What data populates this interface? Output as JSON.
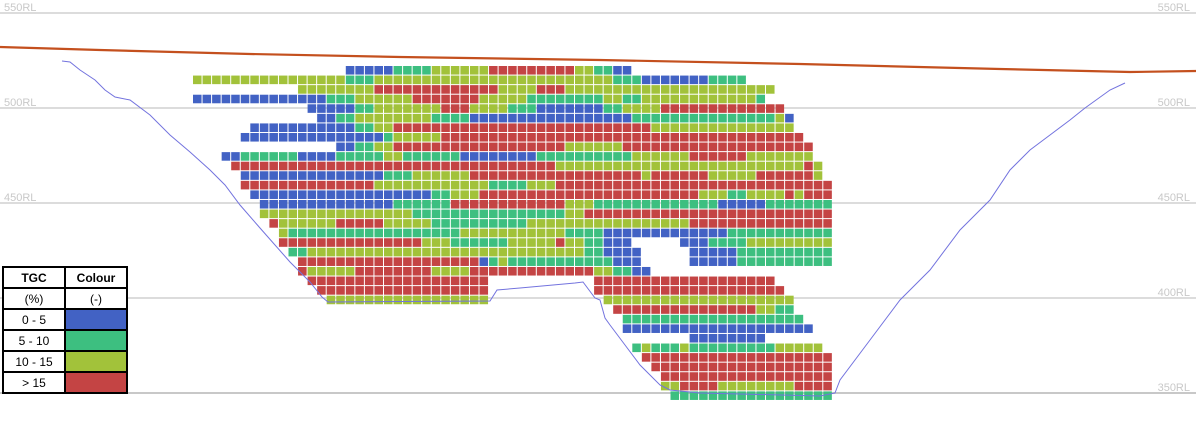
{
  "elevation_labels": [
    "550RL",
    "500RL",
    "450RL",
    "400RL",
    "350RL"
  ],
  "elevations": [
    550,
    500,
    450,
    400,
    350
  ],
  "legend": {
    "header": [
      "TGC",
      "Colour"
    ],
    "units": [
      "(%)",
      "(-)"
    ],
    "classes": [
      {
        "label": "0 - 5",
        "color": "#4262c4"
      },
      {
        "label": "5 - 10",
        "color": "#3dbf80"
      },
      {
        "label": "10 - 15",
        "color": "#a2c23a"
      },
      {
        "label": "> 15",
        "color": "#c44444"
      }
    ]
  },
  "colors": {
    "topography": "#c4501e",
    "pit_outline": "#7373de",
    "grid": "#c8c8c8"
  },
  "block_model": {
    "columns": 67,
    "rows": [
      [
        [
          16,
          21,
          0
        ],
        [
          21,
          25,
          1
        ],
        [
          25,
          31,
          2
        ],
        [
          31,
          40,
          3
        ],
        [
          40,
          42,
          2
        ],
        [
          42,
          44,
          1
        ],
        [
          44,
          46,
          0
        ]
      ],
      [
        [
          0,
          16,
          2
        ],
        [
          16,
          19,
          1
        ],
        [
          19,
          44,
          2
        ],
        [
          44,
          47,
          1
        ],
        [
          47,
          54,
          0
        ],
        [
          54,
          58,
          1
        ]
      ],
      [
        [
          11,
          19,
          2
        ],
        [
          19,
          32,
          3
        ],
        [
          32,
          36,
          2
        ],
        [
          36,
          39,
          3
        ],
        [
          39,
          61,
          2
        ]
      ],
      [
        [
          0,
          14,
          0
        ],
        [
          14,
          17,
          1
        ],
        [
          17,
          23,
          2
        ],
        [
          23,
          30,
          3
        ],
        [
          30,
          35,
          2
        ],
        [
          35,
          43,
          1
        ],
        [
          43,
          45,
          2
        ],
        [
          45,
          47,
          1
        ],
        [
          47,
          59,
          2
        ],
        [
          59,
          60,
          1
        ]
      ],
      [
        [
          12,
          17,
          0
        ],
        [
          17,
          19,
          1
        ],
        [
          19,
          26,
          2
        ],
        [
          26,
          29,
          3
        ],
        [
          29,
          33,
          2
        ],
        [
          33,
          36,
          1
        ],
        [
          36,
          43,
          0
        ],
        [
          43,
          45,
          1
        ],
        [
          45,
          49,
          2
        ],
        [
          49,
          62,
          3
        ]
      ],
      [
        [
          13,
          15,
          0
        ],
        [
          15,
          17,
          1
        ],
        [
          17,
          25,
          2
        ],
        [
          25,
          29,
          1
        ],
        [
          29,
          46,
          0
        ],
        [
          46,
          61,
          1
        ],
        [
          61,
          62,
          2
        ],
        [
          62,
          63,
          0
        ]
      ],
      [
        [
          6,
          17,
          0
        ],
        [
          17,
          19,
          1
        ],
        [
          19,
          21,
          2
        ],
        [
          21,
          48,
          3
        ],
        [
          48,
          63,
          2
        ]
      ],
      [
        [
          5,
          20,
          0
        ],
        [
          20,
          21,
          1
        ],
        [
          21,
          26,
          2
        ],
        [
          26,
          64,
          3
        ]
      ],
      [
        [
          15,
          17,
          0
        ],
        [
          17,
          19,
          1
        ],
        [
          19,
          21,
          2
        ],
        [
          21,
          39,
          3
        ],
        [
          39,
          45,
          2
        ],
        [
          45,
          65,
          3
        ]
      ],
      [
        [
          3,
          5,
          0
        ],
        [
          5,
          11,
          1
        ],
        [
          11,
          15,
          0
        ],
        [
          15,
          20,
          1
        ],
        [
          20,
          22,
          2
        ],
        [
          22,
          28,
          1
        ],
        [
          28,
          36,
          0
        ],
        [
          36,
          46,
          1
        ],
        [
          46,
          52,
          2
        ],
        [
          52,
          58,
          3
        ],
        [
          58,
          65,
          2
        ]
      ],
      [
        [
          4,
          38,
          3
        ],
        [
          38,
          64,
          2
        ],
        [
          64,
          65,
          3
        ],
        [
          65,
          66,
          2
        ]
      ],
      [
        [
          5,
          20,
          0
        ],
        [
          20,
          23,
          1
        ],
        [
          23,
          29,
          2
        ],
        [
          29,
          47,
          3
        ],
        [
          47,
          48,
          2
        ],
        [
          48,
          54,
          3
        ],
        [
          54,
          59,
          2
        ],
        [
          59,
          65,
          3
        ],
        [
          65,
          66,
          2
        ]
      ],
      [
        [
          5,
          19,
          3
        ],
        [
          19,
          31,
          2
        ],
        [
          31,
          35,
          1
        ],
        [
          35,
          38,
          2
        ],
        [
          38,
          67,
          3
        ]
      ],
      [
        [
          6,
          25,
          0
        ],
        [
          25,
          27,
          1
        ],
        [
          27,
          30,
          2
        ],
        [
          30,
          53,
          3
        ],
        [
          53,
          56,
          2
        ],
        [
          56,
          58,
          1
        ],
        [
          58,
          62,
          2
        ],
        [
          62,
          63,
          3
        ],
        [
          63,
          64,
          2
        ],
        [
          64,
          67,
          3
        ]
      ],
      [
        [
          7,
          21,
          0
        ],
        [
          21,
          27,
          1
        ],
        [
          27,
          39,
          3
        ],
        [
          39,
          42,
          2
        ],
        [
          42,
          55,
          1
        ],
        [
          55,
          60,
          0
        ],
        [
          60,
          67,
          1
        ]
      ],
      [
        [
          7,
          23,
          2
        ],
        [
          23,
          39,
          1
        ],
        [
          39,
          41,
          2
        ],
        [
          41,
          67,
          3
        ]
      ],
      [
        [
          8,
          9,
          3
        ],
        [
          9,
          15,
          2
        ],
        [
          15,
          20,
          3
        ],
        [
          20,
          25,
          2
        ],
        [
          25,
          35,
          1
        ],
        [
          35,
          52,
          2
        ],
        [
          52,
          67,
          3
        ]
      ],
      [
        [
          9,
          10,
          2
        ],
        [
          10,
          28,
          1
        ],
        [
          28,
          39,
          2
        ],
        [
          39,
          43,
          1
        ],
        [
          43,
          56,
          0
        ],
        [
          56,
          67,
          1
        ]
      ],
      [
        [
          9,
          24,
          3
        ],
        [
          24,
          27,
          2
        ],
        [
          27,
          33,
          1
        ],
        [
          33,
          38,
          2
        ],
        [
          38,
          39,
          3
        ],
        [
          39,
          41,
          2
        ],
        [
          41,
          43,
          1
        ],
        [
          43,
          46,
          0
        ],
        [
          51,
          54,
          0
        ],
        [
          54,
          58,
          1
        ],
        [
          58,
          67,
          2
        ]
      ],
      [
        [
          10,
          12,
          1
        ],
        [
          12,
          41,
          2
        ],
        [
          41,
          43,
          1
        ],
        [
          43,
          47,
          0
        ],
        [
          52,
          57,
          0
        ],
        [
          57,
          67,
          1
        ]
      ],
      [
        [
          11,
          30,
          3
        ],
        [
          30,
          31,
          0
        ],
        [
          31,
          32,
          1
        ],
        [
          32,
          33,
          2
        ],
        [
          33,
          44,
          1
        ],
        [
          44,
          47,
          0
        ],
        [
          52,
          57,
          0
        ],
        [
          57,
          67,
          1
        ]
      ],
      [
        [
          11,
          12,
          3
        ],
        [
          12,
          17,
          2
        ],
        [
          17,
          25,
          3
        ],
        [
          25,
          29,
          2
        ],
        [
          29,
          42,
          3
        ],
        [
          42,
          44,
          2
        ],
        [
          44,
          46,
          1
        ],
        [
          46,
          48,
          0
        ]
      ],
      [
        [
          12,
          31,
          3
        ],
        [
          42,
          61,
          3
        ]
      ],
      [
        [
          13,
          31,
          3
        ],
        [
          42,
          62,
          3
        ]
      ],
      [
        [
          14,
          31,
          2
        ],
        [
          43,
          63,
          2
        ]
      ],
      [
        [
          44,
          59,
          3
        ],
        [
          59,
          61,
          2
        ],
        [
          61,
          63,
          1
        ]
      ],
      [
        [
          45,
          64,
          1
        ]
      ],
      [
        [
          45,
          65,
          0
        ]
      ],
      [
        [
          52,
          60,
          0
        ]
      ],
      [
        [
          46,
          47,
          1
        ],
        [
          47,
          48,
          2
        ],
        [
          48,
          51,
          1
        ],
        [
          51,
          52,
          2
        ],
        [
          52,
          61,
          1
        ],
        [
          61,
          66,
          2
        ]
      ],
      [
        [
          47,
          67,
          3
        ]
      ],
      [
        [
          48,
          67,
          3
        ]
      ],
      [
        [
          49,
          67,
          3
        ]
      ],
      [
        [
          49,
          51,
          2
        ],
        [
          51,
          55,
          3
        ],
        [
          55,
          63,
          2
        ],
        [
          63,
          67,
          3
        ]
      ],
      [
        [
          50,
          67,
          1
        ]
      ]
    ]
  }
}
